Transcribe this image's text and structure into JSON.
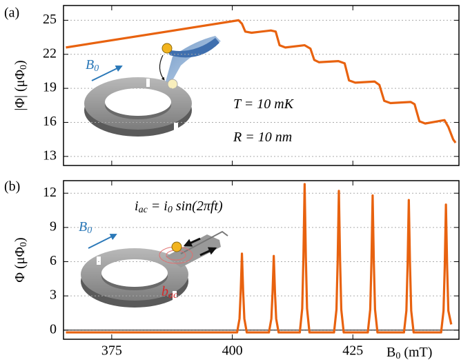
{
  "chart_data": [
    {
      "type": "line",
      "panel_label": "(a)",
      "ylabel": [
        "|Φ| (μΦ",
        "0",
        ")"
      ],
      "color": "#e8620f",
      "xlim": [
        365,
        447
      ],
      "ylim": [
        12.2,
        26.3
      ],
      "xticks": [
        375,
        400,
        425
      ],
      "xtick_labels": false,
      "yticks": [
        13,
        16,
        19,
        22,
        25
      ],
      "grid": true,
      "x": [
        365.5,
        401.3,
        402.0,
        402.7,
        404,
        408,
        409,
        409.8,
        411,
        415,
        416.2,
        417,
        418,
        422,
        423.3,
        424.2,
        425.5,
        429.5,
        430.5,
        431.5,
        432.8,
        437,
        437.8,
        438.8,
        440,
        444,
        444.8,
        445.8,
        446.3
      ],
      "values": [
        22.6,
        25.0,
        24.7,
        24.0,
        23.9,
        24.1,
        24.0,
        22.8,
        22.6,
        22.8,
        22.5,
        21.5,
        21.3,
        21.4,
        21.2,
        19.7,
        19.5,
        19.6,
        19.3,
        17.9,
        17.7,
        17.8,
        17.6,
        16.1,
        15.9,
        16.2,
        15.6,
        14.5,
        14.2
      ],
      "annotations": [
        {
          "text": [
            "T = 10 mK"
          ],
          "color": "#000000"
        },
        {
          "text": [
            "R = 10 nm"
          ],
          "color": "#000000"
        },
        {
          "text": [
            "B",
            "0"
          ],
          "color": "#2a78b8"
        }
      ]
    },
    {
      "type": "line",
      "panel_label": "(b)",
      "ylabel": [
        "Φ (μΦ",
        "0",
        ")"
      ],
      "xlabel": [
        "B",
        "0",
        " (mT)"
      ],
      "color": "#e8620f",
      "xlim": [
        365,
        447
      ],
      "ylim": [
        -0.8,
        13.1
      ],
      "xticks": [
        375,
        400,
        425
      ],
      "xtick_labels": true,
      "yticks": [
        0,
        3,
        6,
        9,
        12
      ],
      "grid": true,
      "reference_line": 0,
      "x": [
        365.5,
        401.0,
        401.5,
        401.75,
        402.0,
        402.25,
        402.5,
        403.0,
        407.6,
        408.1,
        408.35,
        408.6,
        408.85,
        409.1,
        409.6,
        414.0,
        414.5,
        414.75,
        415.0,
        415.25,
        415.5,
        416.0,
        421.1,
        421.6,
        421.85,
        422.1,
        422.35,
        422.6,
        423.1,
        428.1,
        428.6,
        428.85,
        429.1,
        429.35,
        429.6,
        430.1,
        435.6,
        436.1,
        436.35,
        436.6,
        436.85,
        437.1,
        437.6,
        443.3,
        443.8,
        444.05,
        444.3,
        444.55,
        444.8,
        445.4
      ],
      "values": [
        -0.2,
        -0.2,
        1.0,
        3.4,
        6.7,
        3.4,
        1.0,
        -0.2,
        -0.2,
        1.0,
        3.3,
        6.5,
        3.3,
        1.0,
        -0.2,
        -0.2,
        1.9,
        6.4,
        12.8,
        6.4,
        1.9,
        -0.2,
        -0.2,
        1.8,
        6.1,
        12.2,
        6.1,
        1.8,
        -0.2,
        -0.2,
        1.8,
        5.9,
        11.8,
        5.9,
        1.8,
        -0.2,
        -0.2,
        1.7,
        5.7,
        11.4,
        5.7,
        1.7,
        -0.2,
        -0.2,
        1.7,
        5.5,
        11.0,
        5.5,
        1.7,
        0.5
      ],
      "annotations": [
        {
          "text": [
            "i",
            "ac",
            " = i",
            "0",
            " sin(2πft)"
          ],
          "color": "#000000"
        },
        {
          "text": [
            "B",
            "0"
          ],
          "color": "#2a78b8"
        },
        {
          "text": [
            "b",
            "ac"
          ],
          "color": "#d62728"
        }
      ]
    }
  ]
}
